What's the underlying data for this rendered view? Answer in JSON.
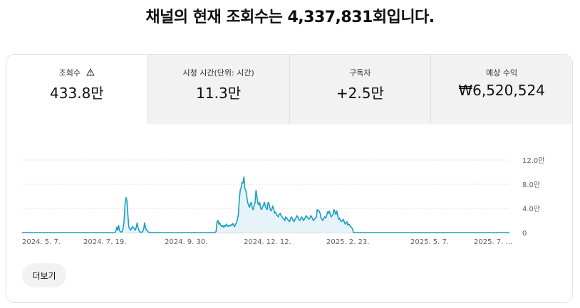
{
  "headline": "채널의 현재 조회수는 4,337,831회입니다.",
  "tabs": [
    {
      "label": "조회수",
      "value": "433.8만",
      "icon": "warning-icon"
    },
    {
      "label": "시청 시간(단위: 시간)",
      "value": "11.3만"
    },
    {
      "label": "구독자",
      "value": "+2.5만"
    },
    {
      "label": "예상 수익",
      "value": "₩6,520,524"
    }
  ],
  "more_button": "더보기",
  "colors": {
    "line": "#1a9fc0",
    "fill": "#e6f4fa",
    "grid": "#e0e0e0"
  },
  "chart_data": {
    "type": "area",
    "title": "",
    "xlabel": "",
    "ylabel": "",
    "y_axis_side": "right",
    "ylim": [
      0,
      120000
    ],
    "y_ticks": [
      {
        "value": 0,
        "label": "0"
      },
      {
        "value": 40000,
        "label": "4.0만"
      },
      {
        "value": 80000,
        "label": "8.0만"
      },
      {
        "value": 120000,
        "label": "12.0만"
      }
    ],
    "x_tick_labels": [
      "2024. 5. 7.",
      "2024. 7. 19.",
      "2024. 9. 30.",
      "2024. 12. 12.",
      "2025. 2. 23.",
      "2025. 5. 7.",
      "2025. 7. ..."
    ],
    "series": [
      {
        "values": [
          0,
          0,
          0,
          0,
          0,
          0,
          0,
          0,
          0,
          0,
          0,
          0,
          0,
          0,
          0,
          0,
          0,
          0,
          0,
          0,
          0,
          0,
          0,
          0,
          0,
          0,
          0,
          0,
          0,
          0,
          0,
          0,
          0,
          0,
          0,
          0,
          0,
          0,
          0,
          0,
          0,
          0,
          0,
          0,
          0,
          0,
          0,
          0,
          0,
          0,
          0,
          0,
          0,
          0,
          0,
          0,
          0,
          0,
          0,
          0,
          0,
          0,
          0,
          0,
          0,
          0,
          0,
          0,
          0,
          0,
          0,
          0,
          0,
          0,
          0,
          0,
          0,
          0,
          0,
          0,
          0,
          0,
          0,
          0,
          0,
          0,
          0,
          0,
          0,
          0,
          0,
          0,
          0,
          0,
          0,
          0,
          0,
          0,
          0,
          0,
          0,
          3000,
          9000,
          4000,
          12000,
          3000,
          1500,
          800,
          2000,
          8000,
          22000,
          48000,
          58000,
          52000,
          28000,
          9000,
          6000,
          4000,
          7000,
          10000,
          8000,
          6000,
          4000,
          9000,
          16000,
          7000,
          3000,
          1000,
          600,
          900,
          2000,
          6000,
          16000,
          8000,
          4000,
          3000,
          1000,
          0,
          0,
          0,
          0,
          0,
          0,
          0,
          0,
          0,
          0,
          0,
          0,
          0,
          0,
          0,
          0,
          0,
          0,
          0,
          0,
          0,
          0,
          0,
          0,
          0,
          0,
          0,
          0,
          0,
          0,
          0,
          0,
          0,
          0,
          0,
          0,
          0,
          0,
          0,
          0,
          0,
          0,
          0,
          0,
          0,
          0,
          0,
          0,
          0,
          0,
          0,
          0,
          0,
          0,
          0,
          0,
          0,
          0,
          0,
          0,
          0,
          0,
          0,
          0,
          0,
          0,
          0,
          0,
          0,
          0,
          0,
          0,
          2000,
          18000,
          20000,
          14000,
          16000,
          12000,
          10000,
          12000,
          9000,
          12000,
          10000,
          14000,
          12000,
          10000,
          12000,
          11000,
          13000,
          12000,
          15000,
          12000,
          10000,
          14000,
          16000,
          22000,
          30000,
          55000,
          70000,
          75000,
          83000,
          82000,
          92000,
          72000,
          70000,
          60000,
          50000,
          45000,
          42000,
          48000,
          50000,
          40000,
          38000,
          45000,
          50000,
          70000,
          60000,
          48000,
          46000,
          50000,
          40000,
          38000,
          42000,
          46000,
          50000,
          44000,
          40000,
          38000,
          50000,
          48000,
          40000,
          36000,
          38000,
          44000,
          40000,
          32000,
          34000,
          30000,
          28000,
          26000,
          30000,
          32000,
          28000,
          26000,
          24000,
          22000,
          20000,
          26000,
          24000,
          22000,
          20000,
          18000,
          22000,
          26000,
          24000,
          20000,
          18000,
          22000,
          24000,
          28000,
          26000,
          22000,
          20000,
          22000,
          26000,
          24000,
          20000,
          22000,
          24000,
          28000,
          26000,
          24000,
          22000,
          24000,
          28000,
          26000,
          22000,
          20000,
          22000,
          24000,
          26000,
          38000,
          36000,
          36000,
          32000,
          24000,
          22000,
          20000,
          24000,
          26000,
          24000,
          28000,
          34000,
          32000,
          36000,
          30000,
          26000,
          28000,
          30000,
          38000,
          34000,
          30000,
          36000,
          28000,
          22000,
          24000,
          20000,
          18000,
          20000,
          22000,
          18000,
          14000,
          16000,
          18000,
          12000,
          14000,
          12000,
          10000,
          8000,
          6000,
          0,
          0,
          0,
          0,
          0,
          0,
          0,
          0,
          0,
          0,
          0,
          0,
          0,
          0,
          0,
          0,
          0,
          0,
          0,
          0,
          0,
          0,
          0,
          0,
          0,
          0,
          0,
          0,
          0,
          0,
          0,
          0,
          0,
          0,
          0,
          0,
          0,
          0,
          0,
          0,
          0,
          0,
          0,
          0,
          0,
          0,
          0,
          0,
          0,
          0,
          0,
          0,
          0,
          0,
          0,
          0,
          0,
          0,
          0,
          0,
          0,
          0,
          0,
          0,
          0,
          0,
          0,
          0,
          0,
          0,
          0,
          0,
          0,
          0,
          0,
          0,
          0,
          0,
          0,
          0,
          0,
          0,
          0,
          0,
          0,
          0,
          0,
          0,
          0,
          0,
          0,
          0,
          0,
          0,
          0,
          0,
          0,
          0,
          0,
          0,
          0,
          0,
          0,
          0,
          0,
          0,
          0,
          0,
          0,
          0,
          0,
          0,
          0,
          0,
          0,
          0,
          0,
          0,
          0,
          0,
          0,
          0,
          0,
          0,
          0,
          0,
          0,
          0,
          0,
          0,
          0,
          0,
          0,
          0,
          0,
          0,
          0,
          0,
          0,
          0,
          0,
          0,
          0,
          0,
          0,
          0,
          0,
          0,
          0,
          0,
          0,
          0,
          0,
          0,
          0,
          0,
          0,
          0,
          0,
          0,
          0,
          0,
          0,
          0,
          0,
          0,
          0,
          0,
          0
        ]
      }
    ]
  }
}
